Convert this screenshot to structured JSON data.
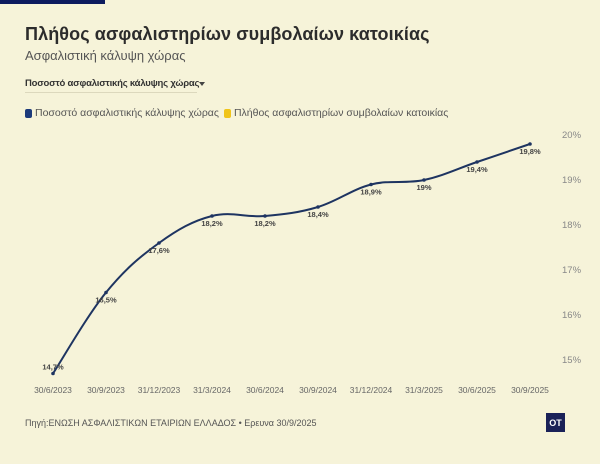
{
  "header": {
    "title": "Πλήθος ασφαλιστηρίων συμβολαίων κατοικίας",
    "subtitle": "Ασφαλιστική κάλυψη χώρας"
  },
  "dropdown": {
    "selected": "Ποσοστό ασφαλιστικής κάλυψης χώρας"
  },
  "legend": [
    {
      "label": "Ποσοστό ασφαλιστικής κάλυψης χώρας",
      "color": "#1c3a7a"
    },
    {
      "label": "Πλήθος ασφαλιστηρίων συμβολαίων κατοικίας",
      "color": "#f0c419"
    }
  ],
  "footer": {
    "source": "Πηγή:ΕΝΩΣΗ ΑΣΦΑΛΙΣΤΙΚΩΝ ΕΤΑΙΡΙΩΝ ΕΛΛΑΔΟΣ • Ερευνα 30/9/2025",
    "logo_text": "OT"
  },
  "colors": {
    "line": "#1e3461",
    "background": "#f6f3d9",
    "logo_bg": "#1a2158"
  },
  "chart_data": {
    "type": "line",
    "title": "Πλήθος ασφαλιστηρίων συμβολαίων κατοικίας",
    "subtitle": "Ασφαλιστική κάλυψη χώρας",
    "xlabel": "",
    "ylabel": "",
    "categories": [
      "30/6/2023",
      "30/9/2023",
      "31/12/2023",
      "31/3/2024",
      "30/6/2024",
      "30/9/2024",
      "31/12/2024",
      "31/3/2025",
      "30/6/2025",
      "30/9/2025"
    ],
    "series": [
      {
        "name": "Ποσοστό ασφαλιστικής κάλυψης χώρας",
        "values": [
          14.7,
          16.5,
          17.6,
          18.2,
          18.2,
          18.4,
          18.9,
          19.0,
          19.4,
          19.8
        ],
        "labels": [
          "14,7%",
          "16,5%",
          "17,6%",
          "18,2%",
          "18,2%",
          "18,4%",
          "18,9%",
          "19%",
          "19,4%",
          "19,8%"
        ]
      }
    ],
    "y_ticks": [
      "20%",
      "19%",
      "18%",
      "17%",
      "16%",
      "15%"
    ],
    "ylim": [
      14.6,
      20
    ],
    "y_axis_position": "right",
    "grid": false,
    "legend_position": "top-left"
  }
}
